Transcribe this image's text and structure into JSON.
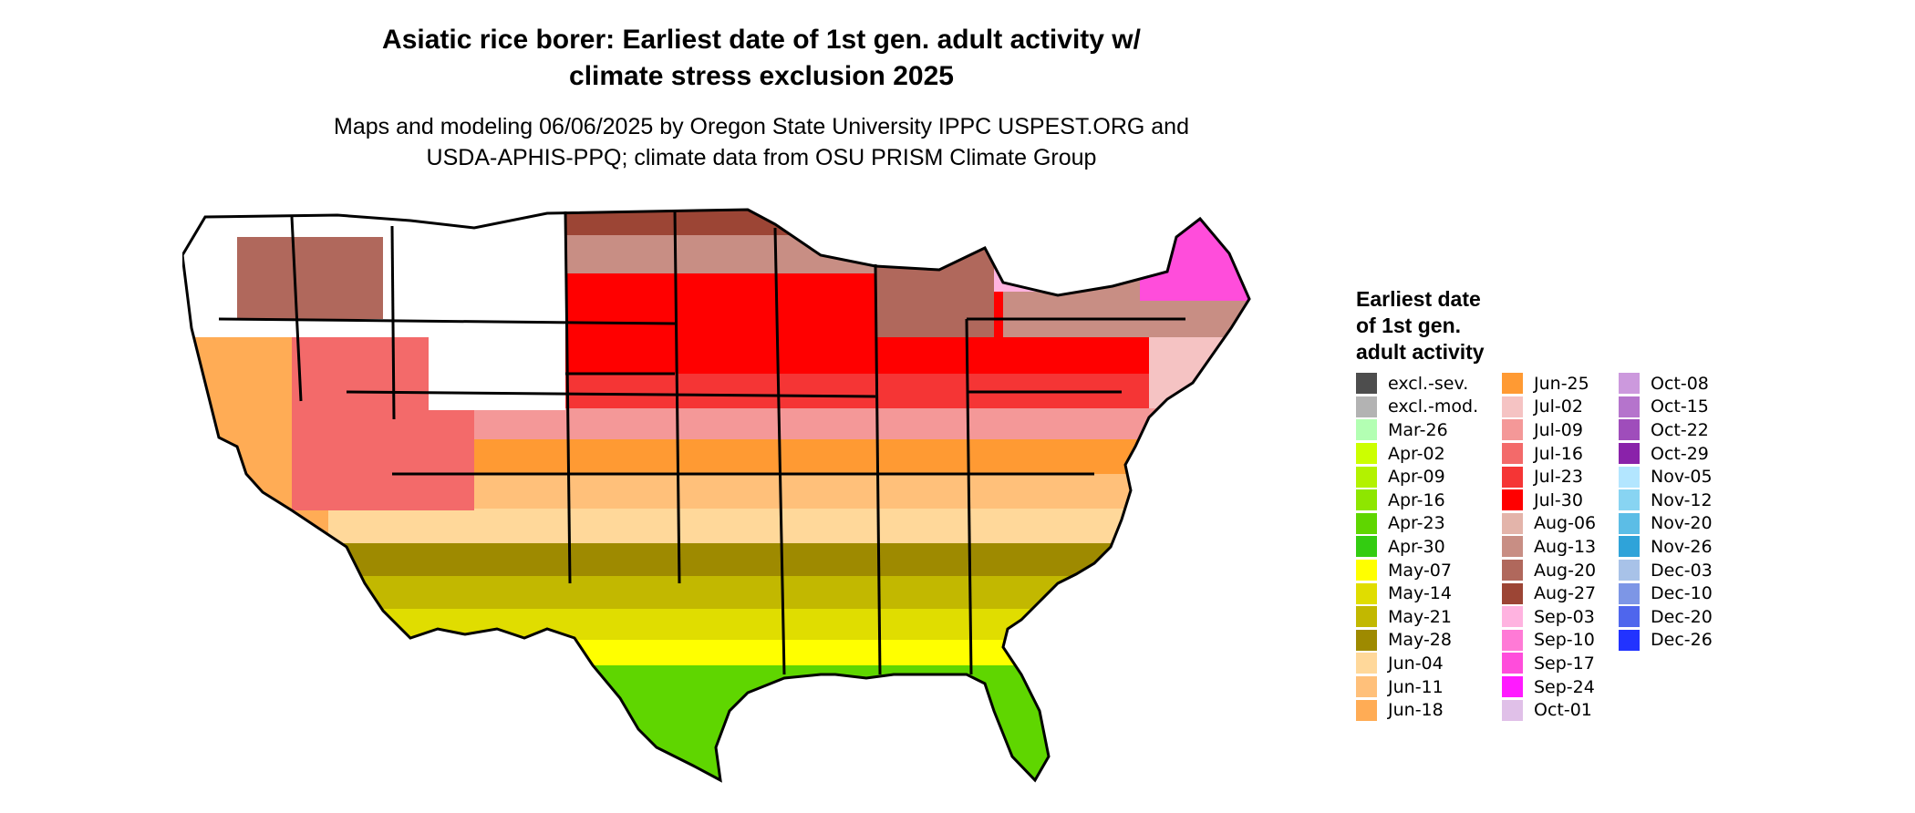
{
  "title": {
    "line1": "Asiatic rice borer: Earliest date of 1st gen. adult activity w/",
    "line2": "climate stress exclusion 2025"
  },
  "subtitle": {
    "line1": "Maps and modeling 06/06/2025 by Oregon State University IPPC USPEST.ORG and",
    "line2": "USDA-APHIS-PPQ; climate data from OSU PRISM Climate Group"
  },
  "legend": {
    "title_line1": "Earliest date",
    "title_line2": "of 1st gen.",
    "title_line3": "adult activity",
    "columns": [
      [
        {
          "label": "excl.-sev.",
          "color": "#4d4d4d"
        },
        {
          "label": "excl.-mod.",
          "color": "#b3b3b3"
        },
        {
          "label": "Mar-26",
          "color": "#b3ffb3"
        },
        {
          "label": "Apr-02",
          "color": "#ccff00"
        },
        {
          "label": "Apr-09",
          "color": "#b3f200"
        },
        {
          "label": "Apr-16",
          "color": "#8ee600"
        },
        {
          "label": "Apr-23",
          "color": "#5fd600"
        },
        {
          "label": "Apr-30",
          "color": "#33cc11"
        },
        {
          "label": "May-07",
          "color": "#ffff00"
        },
        {
          "label": "May-14",
          "color": "#e0dd00"
        },
        {
          "label": "May-21",
          "color": "#c2b800"
        },
        {
          "label": "May-28",
          "color": "#9e8a00"
        },
        {
          "label": "Jun-04",
          "color": "#ffd89a"
        },
        {
          "label": "Jun-11",
          "color": "#ffc07a"
        },
        {
          "label": "Jun-18",
          "color": "#ffac55"
        }
      ],
      [
        {
          "label": "Jun-25",
          "color": "#ff9a33"
        },
        {
          "label": "Jul-02",
          "color": "#f5c3c3"
        },
        {
          "label": "Jul-09",
          "color": "#f49898"
        },
        {
          "label": "Jul-16",
          "color": "#f36a6a"
        },
        {
          "label": "Jul-23",
          "color": "#f53535"
        },
        {
          "label": "Jul-30",
          "color": "#ff0000"
        },
        {
          "label": "Aug-06",
          "color": "#e3b4aa"
        },
        {
          "label": "Aug-13",
          "color": "#c88e84"
        },
        {
          "label": "Aug-20",
          "color": "#b0685c"
        },
        {
          "label": "Aug-27",
          "color": "#9c4535"
        },
        {
          "label": "Sep-03",
          "color": "#ffb3e0"
        },
        {
          "label": "Sep-10",
          "color": "#ff7ad6"
        },
        {
          "label": "Sep-17",
          "color": "#ff4ddb"
        },
        {
          "label": "Sep-24",
          "color": "#ff1aff"
        },
        {
          "label": "Oct-01",
          "color": "#e0c0e8"
        }
      ],
      [
        {
          "label": "Oct-08",
          "color": "#cc99dd"
        },
        {
          "label": "Oct-15",
          "color": "#b574cc"
        },
        {
          "label": "Oct-22",
          "color": "#9f4dbb"
        },
        {
          "label": "Oct-29",
          "color": "#8a22aa"
        },
        {
          "label": "Nov-05",
          "color": "#b3e6ff"
        },
        {
          "label": "Nov-12",
          "color": "#88d4f2"
        },
        {
          "label": "Nov-20",
          "color": "#5cbde6"
        },
        {
          "label": "Nov-26",
          "color": "#2fa3d9"
        },
        {
          "label": "Dec-03",
          "color": "#a8c2e8"
        },
        {
          "label": "Dec-10",
          "color": "#7d96e6"
        },
        {
          "label": "Dec-20",
          "color": "#4f66ed"
        },
        {
          "label": "Dec-26",
          "color": "#2233ff"
        }
      ]
    ]
  },
  "map": {
    "region": "Contiguous United States",
    "state_outline_color": "#000000",
    "unshaded_color": "#ffffff"
  }
}
